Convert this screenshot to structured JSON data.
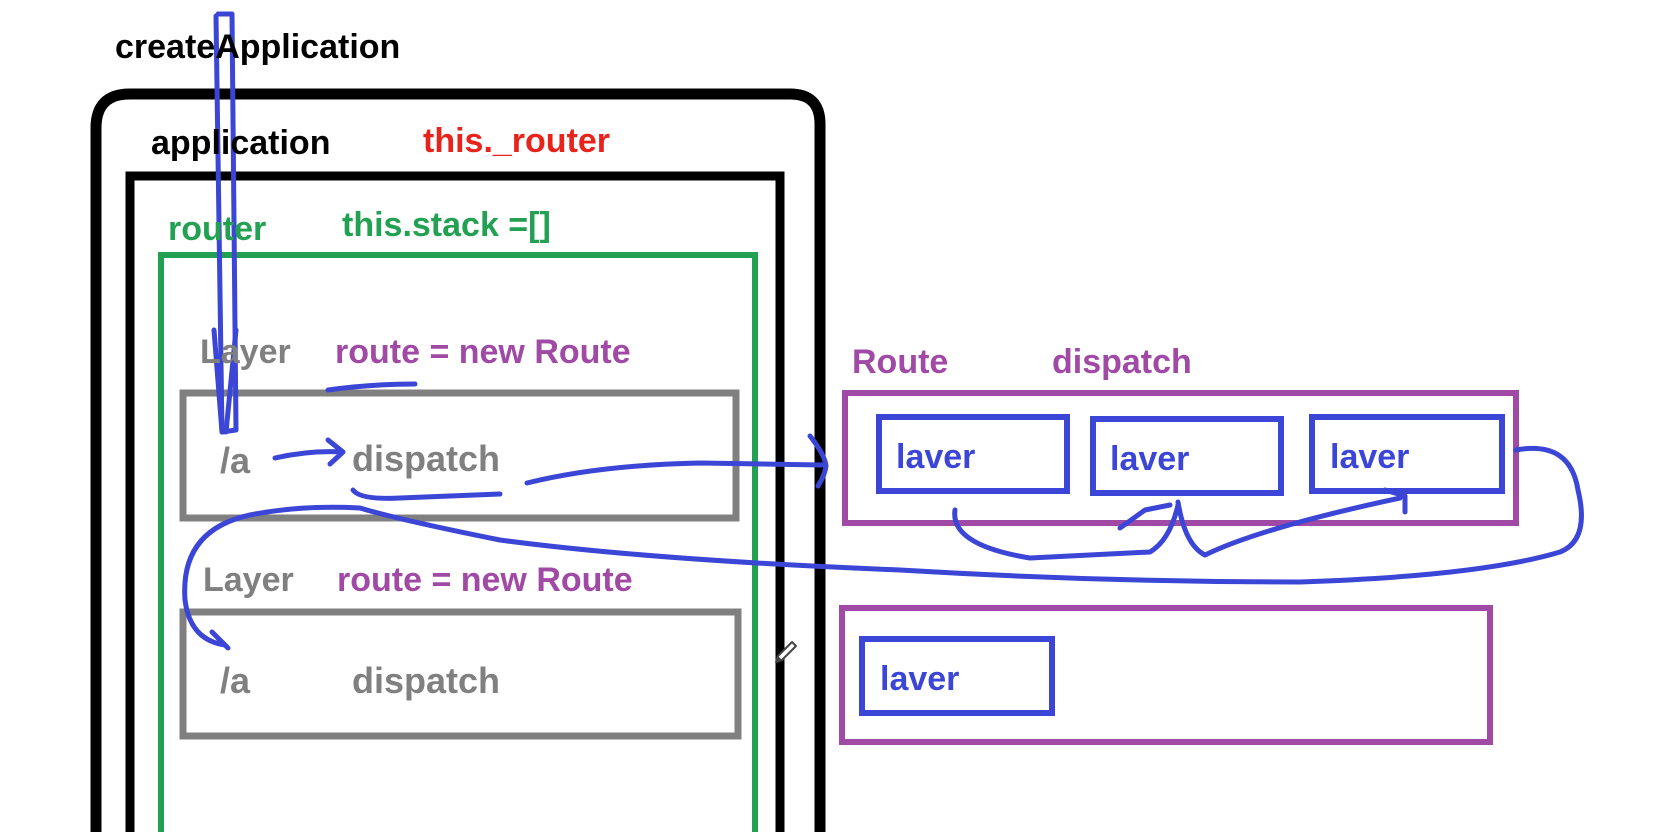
{
  "title": "createApplication",
  "application": {
    "label": "application",
    "prop": "this._router"
  },
  "router": {
    "label": "router",
    "prop": "this.stack =[]"
  },
  "layers": [
    {
      "label": "Layer",
      "route_expr": "route = new Route",
      "path": "/a",
      "handler": "dispatch"
    },
    {
      "label": "Layer",
      "route_expr": "route = new Route",
      "path": "/a",
      "handler": "dispatch"
    }
  ],
  "route_header": {
    "label": "Route",
    "method": "dispatch"
  },
  "route_blocks": [
    {
      "items": [
        "laver",
        "laver",
        "laver"
      ]
    },
    {
      "items": [
        "laver"
      ]
    }
  ],
  "colors": {
    "application": "#000000",
    "this_router": "#e8231b",
    "router": "#23a152",
    "layer": "#808080",
    "route": "#a04aa6",
    "laver": "#3b46d6",
    "annotation": "#3b46d6"
  }
}
